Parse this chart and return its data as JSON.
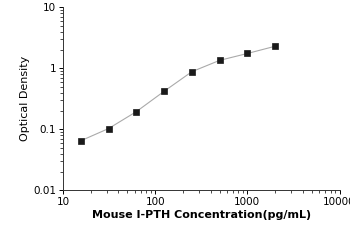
{
  "x_data": [
    15.625,
    31.25,
    62.5,
    125,
    250,
    500,
    1000,
    2000
  ],
  "y_data": [
    0.065,
    0.103,
    0.195,
    0.42,
    0.88,
    1.35,
    1.75,
    2.3
  ],
  "xlabel": "Mouse I-PTH Concentration(pg/mL)",
  "ylabel": "Optical Density",
  "xlim": [
    10,
    10000
  ],
  "ylim": [
    0.01,
    10
  ],
  "x_ticks": [
    10,
    100,
    1000,
    10000
  ],
  "x_tick_labels": [
    "10",
    "100",
    "1000",
    "10000"
  ],
  "y_ticks": [
    0.01,
    0.1,
    1,
    10
  ],
  "y_tick_labels": [
    "0.01",
    "0.1",
    "1",
    "10"
  ],
  "line_color": "#aaaaaa",
  "marker_color": "#1a1a1a",
  "marker": "s",
  "marker_size": 4,
  "line_width": 0.8,
  "background_color": "#ffffff",
  "xlabel_fontsize": 8,
  "ylabel_fontsize": 8,
  "tick_fontsize": 7.5
}
